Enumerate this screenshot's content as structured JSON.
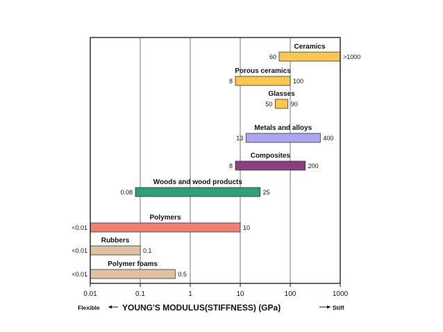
{
  "chart_data": {
    "type": "bar",
    "title": "",
    "xlabel": "YOUNG'S MODULUS(STIFFNESS) (GPa)",
    "xscale": "log",
    "xlim": [
      0.01,
      1000
    ],
    "xticks": [
      "0.01",
      "0.1",
      "1",
      "10",
      "100",
      "1000"
    ],
    "x_left_label": "Flexible",
    "x_right_label": "Stiff",
    "grid": "vertical",
    "series": [
      {
        "category": "Ceramics",
        "min": 60,
        "max": 1000,
        "min_label": "60",
        "max_label": ">1000",
        "color": "#F9C74F"
      },
      {
        "category": "Porous ceramics",
        "min": 8,
        "max": 100,
        "min_label": "8",
        "max_label": "100",
        "color": "#F9C74F"
      },
      {
        "category": "Glasses",
        "min": 50,
        "max": 90,
        "min_label": "50",
        "max_label": "90",
        "color": "#F9C74F"
      },
      {
        "category": "Metals and alloys",
        "min": 13,
        "max": 400,
        "min_label": "13",
        "max_label": "400",
        "color": "#ABA6F2"
      },
      {
        "category": "Composites",
        "min": 8,
        "max": 200,
        "min_label": "8",
        "max_label": "200",
        "color": "#8A3F80"
      },
      {
        "category": "Woods and wood products",
        "min": 0.08,
        "max": 25,
        "min_label": "0.08",
        "max_label": "25",
        "color": "#2E9E7A"
      },
      {
        "category": "Polymers",
        "min": 0.01,
        "max": 10,
        "min_label": "<0.01",
        "max_label": "10",
        "color": "#EE7F72"
      },
      {
        "category": "Rubbers",
        "min": 0.01,
        "max": 0.1,
        "min_label": "<0.01",
        "max_label": "0.1",
        "color": "#DFC1A1"
      },
      {
        "category": "Polymer foams",
        "min": 0.01,
        "max": 0.5,
        "min_label": "<0.01",
        "max_label": "0.5",
        "color": "#DFC1A1"
      }
    ]
  }
}
